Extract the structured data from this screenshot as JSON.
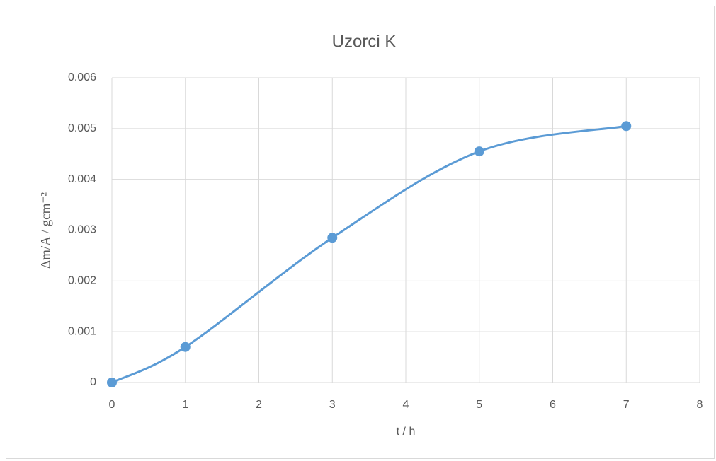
{
  "chart_data": {
    "type": "scatter",
    "title": "Uzorci K",
    "x_label": "t / h",
    "y_label": "Δm/A  /  gcm⁻²",
    "series": [
      {
        "name": "Uzorci K",
        "color": "#5b9bd5",
        "x": [
          0,
          1,
          3,
          5,
          7
        ],
        "values": [
          0,
          0.0007,
          0.00285,
          0.00455,
          0.00505
        ]
      }
    ],
    "xlim": [
      0,
      8
    ],
    "xticks": [
      0,
      1,
      2,
      3,
      4,
      5,
      6,
      7,
      8
    ],
    "ylim": [
      0,
      0.006
    ],
    "yticks": [
      0,
      0.001,
      0.002,
      0.003,
      0.004,
      0.005,
      0.006
    ],
    "grid": true,
    "smooth": true
  }
}
